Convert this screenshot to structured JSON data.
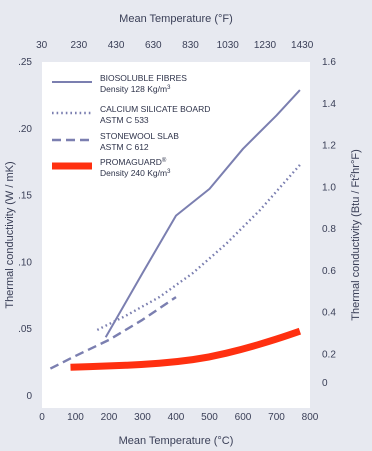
{
  "chart_data": {
    "type": "line",
    "title": "",
    "xlabel": "Mean Temperature (°C)",
    "x2label": "Mean Temperature (°F)",
    "ylabel": "Thermal conductivity (W / mK)",
    "y2label_main": "Thermal conductivity (Btu / Ft",
    "y2label_sup": "2",
    "y2label_rest": "hr°F)",
    "xlim": [
      0,
      800
    ],
    "ylim": [
      0,
      0.25
    ],
    "y2lim": [
      0,
      1.6
    ],
    "x_ticks": [
      "0",
      "100",
      "200",
      "300",
      "400",
      "500",
      "600",
      "700",
      "800"
    ],
    "x_tick_values": [
      0,
      100,
      200,
      300,
      400,
      500,
      600,
      700,
      800
    ],
    "x2_ticks": [
      "30",
      "230",
      "430",
      "630",
      "830",
      "1030",
      "1230",
      "1430"
    ],
    "x2_tick_values": [
      30,
      230,
      430,
      630,
      830,
      1030,
      1230,
      1430
    ],
    "y_ticks": [
      "0",
      ".05",
      ".10",
      ".15",
      ".20",
      ".25"
    ],
    "y_tick_values": [
      0,
      0.05,
      0.1,
      0.15,
      0.2,
      0.25
    ],
    "y2_ticks": [
      "0",
      "0.2",
      "0.4",
      "0.6",
      "0.8",
      "1.0",
      "1.2",
      "1.4",
      "1.6"
    ],
    "y2_tick_values": [
      0,
      0.2,
      0.4,
      0.6,
      0.8,
      1.0,
      1.2,
      1.4,
      1.6
    ],
    "grid": false,
    "legend_position": "top-left",
    "series": [
      {
        "legend_line1": "BIOSOLUBLE FIBRES",
        "legend_line2": "Density 128 Kg/m",
        "legend_sup": "3",
        "style": "solid",
        "color": "#7b7fb0",
        "x": [
          190,
          300,
          400,
          500,
          600,
          700,
          770
        ],
        "y": [
          0.044,
          0.092,
          0.135,
          0.155,
          0.185,
          0.21,
          0.229
        ]
      },
      {
        "legend_line1": "CALCIUM SILICATE BOARD",
        "legend_line2": "ASTM C 533",
        "legend_sup": "",
        "style": "dotted",
        "color": "#7b7fb0",
        "x": [
          165,
          250,
          350,
          450,
          550,
          650,
          770
        ],
        "y": [
          0.0495,
          0.06,
          0.074,
          0.092,
          0.114,
          0.139,
          0.173
        ]
      },
      {
        "legend_line1": "STONEWOOL SLAB",
        "legend_line2": "ASTM C 612",
        "legend_sup": "",
        "style": "dashed",
        "color": "#7b7fb0",
        "x": [
          25,
          100,
          200,
          300,
          400
        ],
        "y": [
          0.0205,
          0.03,
          0.042,
          0.057,
          0.074
        ]
      },
      {
        "legend_line1": "PROMAGUARD",
        "legend_line2": "Density 240 Kg/m",
        "legend_sup": "3",
        "legend_mark": "®",
        "style": "thick",
        "color": "#ff3010",
        "x": [
          85,
          200,
          300,
          400,
          500,
          600,
          700,
          770
        ],
        "y": [
          0.0215,
          0.0225,
          0.0235,
          0.0255,
          0.029,
          0.035,
          0.0425,
          0.0485
        ]
      }
    ]
  }
}
